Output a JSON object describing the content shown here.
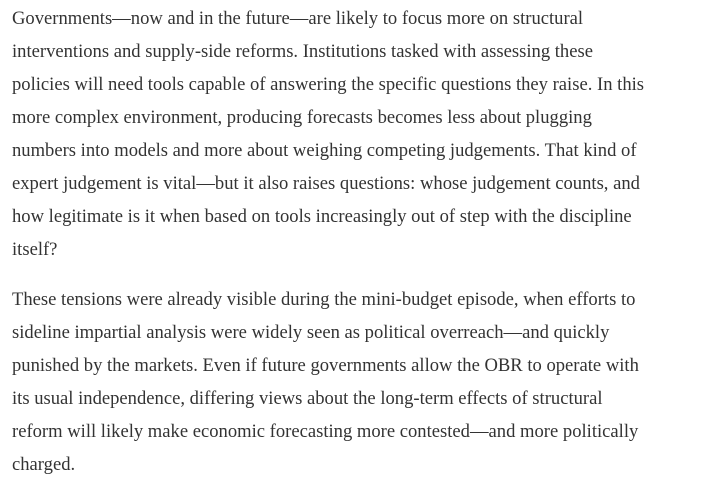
{
  "article": {
    "paragraphs": [
      {
        "lines": [
          "Governments—now and in the future—are likely to focus more on structural",
          "interventions and supply-side reforms. Institutions tasked with assessing these",
          "policies will need tools capable of answering the specific questions they raise. In this",
          "more complex environment, producing forecasts becomes less about plugging",
          "numbers into models and more about weighing competing judgements. That kind of",
          "expert judgement is vital—but it also raises questions: whose judgement counts, and",
          "how legitimate is it when based on tools increasingly out of step with the discipline",
          "itself?"
        ]
      },
      {
        "lines": [
          "These tensions were already visible during the mini-budget episode, when efforts to",
          "sideline impartial analysis were widely seen as political overreach—and quickly",
          "punished by the markets. Even if future governments allow the OBR to operate with",
          "its usual independence, differing views about the long-term effects of structural",
          "reform will likely make economic forecasting more contested—and more politically",
          "charged."
        ]
      }
    ]
  }
}
